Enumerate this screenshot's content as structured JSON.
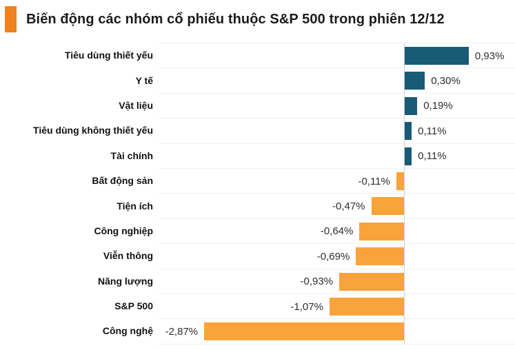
{
  "header": {
    "title": "Biến động các nhóm cổ phiếu thuộc S&P 500 trong phiên 12/12",
    "bullet_color": "#F0811F"
  },
  "chart_data": {
    "type": "bar",
    "orientation": "horizontal",
    "title": "Biến động các nhóm cổ phiếu thuộc S&P 500 trong phiên 12/12",
    "categories": [
      "Tiêu dùng thiết yếu",
      "Y tế",
      "Vật liệu",
      "Tiêu dùng không thiết yếu",
      "Tài chính",
      "Bất động sản",
      "Tiện ích",
      "Công nghiệp",
      "Viễn thông",
      "Năng lượng",
      "S&P 500",
      "Công nghệ"
    ],
    "values": [
      0.93,
      0.3,
      0.19,
      0.11,
      0.11,
      -0.11,
      -0.47,
      -0.64,
      -0.69,
      -0.93,
      -1.07,
      -2.87
    ],
    "value_labels": [
      "0,93%",
      "0,30%",
      "0,19%",
      "0,11%",
      "0,11%",
      "-0,11%",
      "-0,47%",
      "-0,64%",
      "-0,69%",
      "-0,93%",
      "-1,07%",
      "-2,87%"
    ],
    "unit": "%",
    "xlim": [
      -3.52,
      1.6
    ],
    "grid": "row-separators",
    "legend": "none",
    "colors": {
      "positive": "#175B76",
      "negative": "#F9A33B",
      "gridline": "#F0F0F0",
      "zero_line": "#CDD2D6"
    }
  }
}
